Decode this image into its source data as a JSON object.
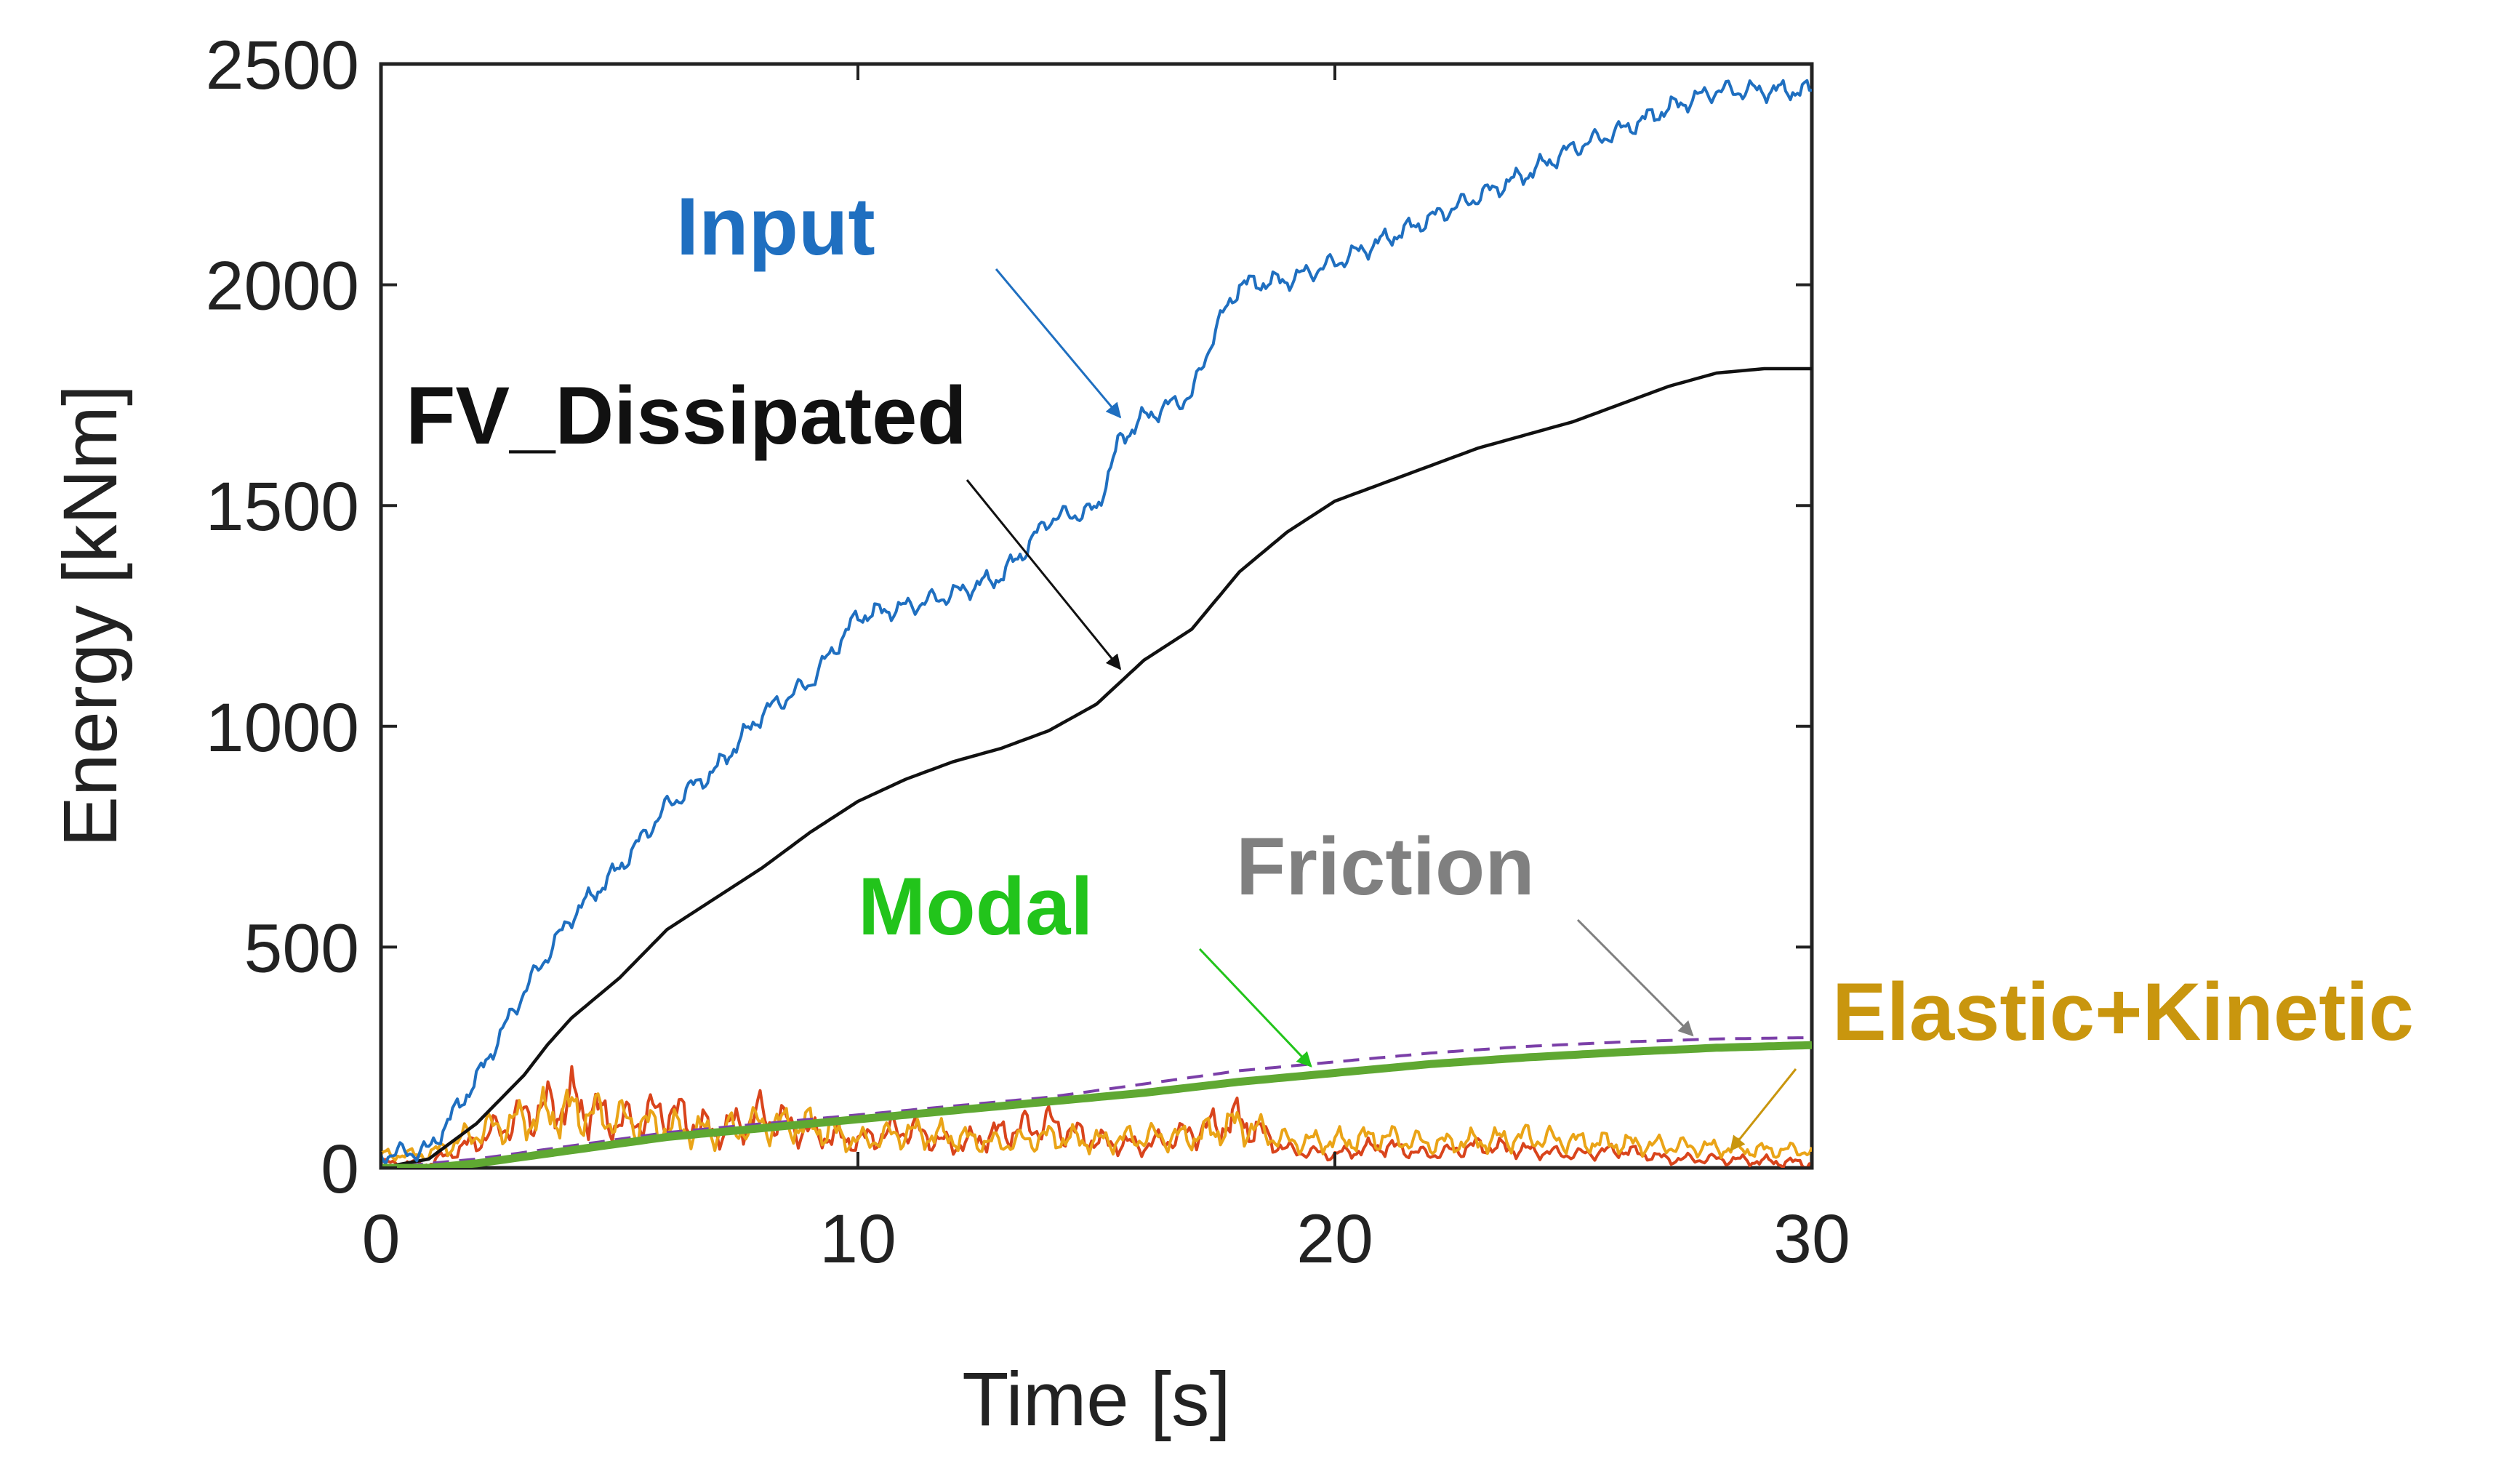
{
  "chart_data": {
    "type": "line",
    "xlabel": "Time [s]",
    "ylabel": "Energy [kNm]",
    "xlim": [
      0,
      30
    ],
    "ylim": [
      0,
      2500
    ],
    "xticks": [
      0,
      10,
      20,
      30
    ],
    "yticks": [
      0,
      500,
      1000,
      1500,
      2000,
      2500
    ],
    "grid": false,
    "series": [
      {
        "name": "Input",
        "color": "#1f6fc0",
        "style": "noisy",
        "x": [
          0,
          1,
          2,
          3,
          4,
          5,
          6,
          7,
          8,
          9,
          10,
          11,
          12,
          13,
          13.5,
          14,
          15,
          15.5,
          16,
          17,
          17.5,
          18,
          19,
          20,
          21,
          22,
          23,
          24,
          25,
          26,
          27,
          28,
          29,
          30
        ],
        "y": [
          30,
          40,
          200,
          400,
          570,
          680,
          820,
          900,
          1030,
          1100,
          1250,
          1270,
          1300,
          1340,
          1400,
          1470,
          1490,
          1650,
          1700,
          1750,
          1900,
          2000,
          2010,
          2050,
          2100,
          2150,
          2200,
          2250,
          2310,
          2350,
          2400,
          2440,
          2440,
          2440
        ]
      },
      {
        "name": "FV_Dissipated",
        "color": "#111111",
        "style": "smooth",
        "x": [
          0,
          1,
          2,
          3,
          3.5,
          4,
          5,
          6,
          7,
          8,
          9,
          10,
          11,
          12,
          13,
          14,
          15,
          16,
          17,
          18,
          19,
          20,
          21,
          22,
          23,
          24,
          25,
          26,
          27,
          28,
          29,
          30
        ],
        "y": [
          0,
          20,
          100,
          210,
          280,
          340,
          430,
          540,
          610,
          680,
          760,
          830,
          880,
          920,
          950,
          990,
          1050,
          1150,
          1220,
          1350,
          1440,
          1510,
          1550,
          1590,
          1630,
          1660,
          1690,
          1730,
          1770,
          1800,
          1810,
          1810
        ]
      },
      {
        "name": "Friction",
        "color": "#7b3fa8",
        "style": "dashed",
        "x": [
          0,
          2,
          4,
          6,
          8,
          10,
          12,
          14,
          16,
          18,
          20,
          22,
          24,
          26,
          28,
          30
        ],
        "y": [
          0,
          20,
          50,
          80,
          100,
          120,
          140,
          160,
          190,
          220,
          240,
          260,
          275,
          285,
          292,
          295
        ]
      },
      {
        "name": "Modal",
        "color": "#5fa832",
        "style": "thick",
        "x": [
          0,
          1,
          2,
          4,
          6,
          8,
          10,
          12,
          14,
          16,
          18,
          20,
          22,
          24,
          26,
          28,
          30
        ],
        "y": [
          0,
          0,
          10,
          40,
          70,
          90,
          110,
          130,
          150,
          170,
          195,
          215,
          235,
          250,
          262,
          272,
          278
        ]
      },
      {
        "name": "Elastic+Kinetic",
        "color": "#eaa417",
        "style": "noisy",
        "x": [
          0,
          1,
          2,
          3,
          4,
          5,
          6,
          7,
          8,
          9,
          10,
          11,
          12,
          13,
          14,
          15,
          16,
          17,
          18,
          19,
          20,
          21,
          22,
          23,
          24,
          25,
          26,
          27,
          28,
          29,
          30
        ],
        "y": [
          30,
          30,
          80,
          110,
          130,
          110,
          90,
          80,
          100,
          95,
          60,
          80,
          70,
          55,
          70,
          60,
          70,
          70,
          100,
          60,
          60,
          70,
          55,
          60,
          70,
          60,
          55,
          50,
          45,
          40,
          40
        ]
      },
      {
        "name": "Elastic+Kinetic (red)",
        "color": "#d9441c",
        "style": "noisy",
        "x": [
          0,
          1,
          2,
          3,
          4,
          5,
          6,
          7,
          8,
          9,
          10,
          11,
          12,
          13,
          14,
          15,
          16,
          17,
          18,
          19,
          20,
          21,
          22,
          23,
          24,
          25,
          26,
          27,
          28,
          29,
          30
        ],
        "y": [
          10,
          10,
          60,
          120,
          150,
          100,
          130,
          80,
          120,
          80,
          60,
          90,
          50,
          80,
          100,
          60,
          50,
          80,
          110,
          40,
          30,
          50,
          30,
          50,
          40,
          30,
          40,
          20,
          20,
          15,
          10
        ]
      }
    ],
    "annotations": [
      {
        "text": "Input",
        "color": "#1f6fc0",
        "point": [
          15.5,
          1700
        ]
      },
      {
        "text": "FV_Dissipated",
        "color": "#111111",
        "point": [
          15.5,
          1130
        ]
      },
      {
        "text": "Friction",
        "color": "#808080",
        "point": [
          27.5,
          300
        ]
      },
      {
        "text": "Modal",
        "color": "#22c41b",
        "point": [
          19.5,
          230
        ]
      },
      {
        "text": "Elastic+Kinetic",
        "color": "#c9960e",
        "point": [
          28.3,
          40
        ]
      }
    ]
  }
}
